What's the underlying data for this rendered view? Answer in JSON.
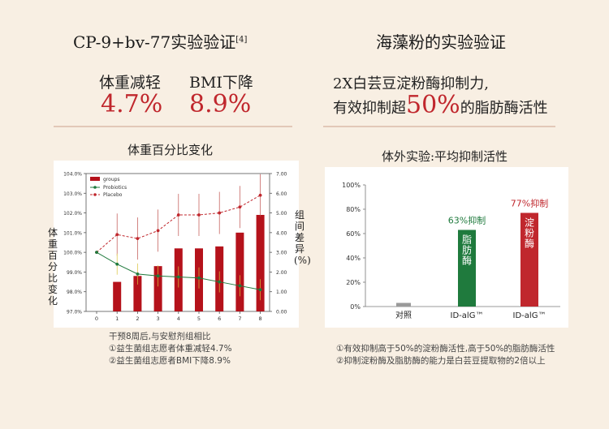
{
  "left": {
    "title": "CP-9+bv-77实验验证",
    "title_sup": "[4]",
    "stats": [
      {
        "label": "体重减轻",
        "value": "4.7%"
      },
      {
        "label": "BMI下降",
        "value": "8.9%"
      }
    ],
    "chart_title": "体重百分比变化",
    "notes": [
      "干预8周后,与安慰剂组相比",
      "①益生菌组志愿者体重减轻4.7%",
      "②益生菌组志愿者BMI下降8.9%"
    ]
  },
  "right": {
    "title": "海藻粉的实验验证",
    "claim_line1": "2X白芸豆淀粉酶抑制力,",
    "claim_line2_pre": "有效抑制超",
    "claim_line2_big": "50%",
    "claim_line2_post": "的脂肪酶活性",
    "chart_title": "体外实验:平均抑制活性",
    "notes": [
      "①有效抑制高于50%的淀粉酶活性,高于50%的脂肪酶活性",
      "②抑制淀粉酶及脂肪酶的能力是白芸豆提取物的2倍以上"
    ]
  },
  "colors": {
    "red": "#c0272d",
    "green": "#1f7a3d",
    "gray": "#9a9a9a"
  },
  "chart_data": [
    {
      "type": "bar+line",
      "title": "体重百分比变化",
      "ylabel": "体重百分比变化",
      "y2label": "组间差异(%)",
      "x": [
        0,
        1,
        2,
        3,
        4,
        5,
        6,
        7,
        8
      ],
      "ylim": [
        97.0,
        104.0
      ],
      "yticks": [
        "104.0%",
        "103.0%",
        "102.0%",
        "101.0%",
        "100.0%",
        "99.0%",
        "98.0%",
        "97.0%"
      ],
      "y2lim": [
        0,
        7
      ],
      "y2ticks": [
        "7.00",
        "6.00",
        "5.00",
        "4.00",
        "3.00",
        "2.00",
        "1.00",
        "0.00"
      ],
      "legend": {
        "position": "top-left",
        "items": [
          "groups",
          "Probiotics",
          "Placebo"
        ]
      },
      "series": [
        {
          "name": "groups",
          "kind": "bar",
          "axis": "right",
          "x": [
            1,
            2,
            3,
            4,
            5,
            6,
            7,
            8
          ],
          "values": [
            1.5,
            1.8,
            2.3,
            3.2,
            3.2,
            3.3,
            4.0,
            4.9
          ]
        },
        {
          "name": "Probiotics",
          "kind": "line",
          "axis": "left",
          "values": [
            100.0,
            99.4,
            98.9,
            98.8,
            98.75,
            98.7,
            98.5,
            98.3,
            98.1
          ]
        },
        {
          "name": "Placebo",
          "kind": "line",
          "axis": "left",
          "values": [
            100.0,
            100.9,
            100.7,
            101.1,
            101.9,
            101.9,
            102.0,
            102.3,
            102.9
          ]
        }
      ]
    },
    {
      "type": "bar",
      "title": "体外实验:平均抑制活性",
      "categories": [
        "对照",
        "ID-alG™",
        "ID-alG™"
      ],
      "values": [
        3,
        63,
        77
      ],
      "bar_labels": [
        "",
        "63%抑制",
        "77%抑制"
      ],
      "inner_labels": [
        "",
        "脂肪酶",
        "淀粉酶"
      ],
      "bar_colors": [
        "#9a9a9a",
        "#1f7a3d",
        "#c0272d"
      ],
      "ylim": [
        0,
        100
      ],
      "yticks": [
        "100%",
        "80%",
        "60%",
        "40%",
        "20%",
        "0%"
      ]
    }
  ]
}
